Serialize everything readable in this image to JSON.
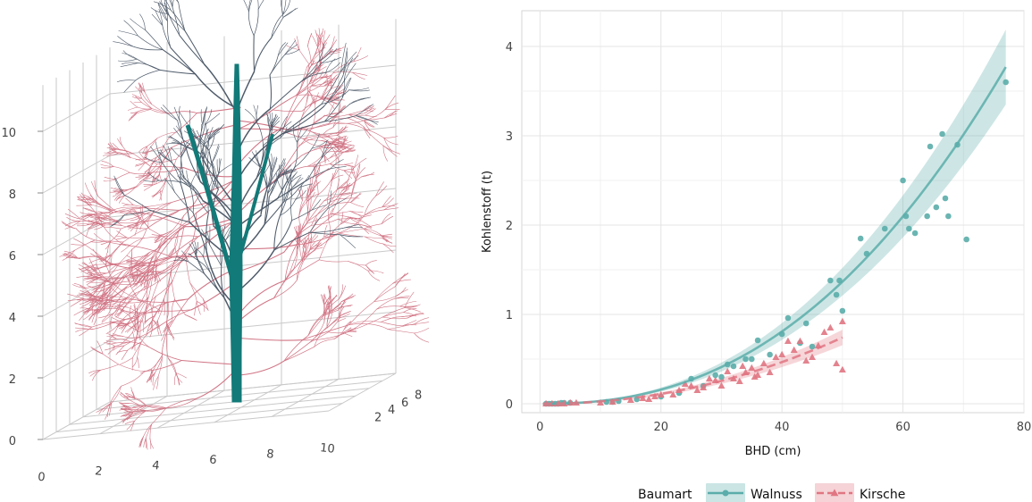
{
  "tree_plot": {
    "x_ticks": [
      "0",
      "2",
      "4",
      "6",
      "8",
      "10"
    ],
    "y_ticks": [
      "2",
      "4",
      "6",
      "8",
      "10"
    ],
    "z_ticks": [
      "0",
      "2",
      "4",
      "6",
      "8",
      "10"
    ],
    "colors": {
      "trunk": "#127a78",
      "branches_main": "#4f5b6a",
      "twigs": "#d17585"
    }
  },
  "chart_data": {
    "type": "scatter",
    "xlabel": "BHD (cm)",
    "ylabel": "Kohlenstoff (t)",
    "xlim": [
      -3,
      80
    ],
    "ylim": [
      -0.1,
      4.4
    ],
    "x_ticks": [
      0,
      20,
      40,
      60,
      80
    ],
    "y_ticks": [
      0,
      1,
      2,
      3,
      4
    ],
    "grid": true,
    "legend": {
      "title": "Baumart",
      "position": "bottom",
      "entries": [
        "Walnuss",
        "Kirsche"
      ]
    },
    "series": [
      {
        "name": "Walnuss",
        "color": "#5aadaa",
        "marker": "circle",
        "line": "solid",
        "fit": {
          "form": "power",
          "a": 0.000139,
          "b": 2.35,
          "x_range": [
            0.5,
            77
          ]
        },
        "points": [
          [
            1,
            0
          ],
          [
            1.5,
            0
          ],
          [
            2,
            0
          ],
          [
            2.5,
            0
          ],
          [
            3,
            0
          ],
          [
            3.5,
            0.01
          ],
          [
            4,
            0.01
          ],
          [
            5,
            0.01
          ],
          [
            11,
            0.02
          ],
          [
            12,
            0.02
          ],
          [
            13,
            0.03
          ],
          [
            16,
            0.05
          ],
          [
            20,
            0.08
          ],
          [
            23,
            0.12
          ],
          [
            25,
            0.28
          ],
          [
            27,
            0.2
          ],
          [
            29,
            0.32
          ],
          [
            30,
            0.3
          ],
          [
            31,
            0.44
          ],
          [
            32,
            0.42
          ],
          [
            34,
            0.5
          ],
          [
            35,
            0.5
          ],
          [
            36,
            0.71
          ],
          [
            38,
            0.55
          ],
          [
            40,
            0.78
          ],
          [
            41,
            0.96
          ],
          [
            43,
            0.68
          ],
          [
            44,
            0.9
          ],
          [
            45,
            0.64
          ],
          [
            48,
            1.38
          ],
          [
            49,
            1.22
          ],
          [
            49.5,
            1.38
          ],
          [
            50,
            1.04
          ],
          [
            53,
            1.85
          ],
          [
            54,
            1.68
          ],
          [
            57,
            1.96
          ],
          [
            60,
            2.5
          ],
          [
            60.5,
            2.1
          ],
          [
            61,
            1.96
          ],
          [
            62,
            1.91
          ],
          [
            64,
            2.1
          ],
          [
            64.5,
            2.88
          ],
          [
            65.5,
            2.2
          ],
          [
            66.5,
            3.02
          ],
          [
            67,
            2.3
          ],
          [
            67.5,
            2.1
          ],
          [
            69,
            2.9
          ],
          [
            70.5,
            1.84
          ],
          [
            77,
            3.6
          ]
        ]
      },
      {
        "name": "Kirsche",
        "color": "#e07682",
        "marker": "triangle",
        "line": "dashed",
        "fit": {
          "form": "power",
          "a": 0.000217,
          "b": 2.08,
          "x_range": [
            0.5,
            50
          ]
        },
        "points": [
          [
            1,
            0
          ],
          [
            2,
            0
          ],
          [
            3,
            0
          ],
          [
            4,
            0
          ],
          [
            5,
            0.01
          ],
          [
            6,
            0.01
          ],
          [
            10,
            0.01
          ],
          [
            12,
            0.02
          ],
          [
            15,
            0.04
          ],
          [
            17,
            0.06
          ],
          [
            18,
            0.05
          ],
          [
            19,
            0.08
          ],
          [
            20,
            0.1
          ],
          [
            22,
            0.1
          ],
          [
            23,
            0.15
          ],
          [
            24,
            0.22
          ],
          [
            25,
            0.2
          ],
          [
            26,
            0.15
          ],
          [
            27,
            0.18
          ],
          [
            28,
            0.28
          ],
          [
            29,
            0.26
          ],
          [
            30,
            0.2
          ],
          [
            31,
            0.36
          ],
          [
            32,
            0.28
          ],
          [
            33,
            0.25
          ],
          [
            33.5,
            0.42
          ],
          [
            34,
            0.35
          ],
          [
            35,
            0.4
          ],
          [
            35.5,
            0.3
          ],
          [
            36,
            0.32
          ],
          [
            37,
            0.45
          ],
          [
            38,
            0.35
          ],
          [
            39,
            0.52
          ],
          [
            40,
            0.55
          ],
          [
            41,
            0.7
          ],
          [
            42,
            0.6
          ],
          [
            43,
            0.7
          ],
          [
            44,
            0.48
          ],
          [
            45,
            0.52
          ],
          [
            46,
            0.65
          ],
          [
            47,
            0.8
          ],
          [
            48,
            0.85
          ],
          [
            49,
            0.45
          ],
          [
            50,
            0.92
          ],
          [
            50,
            0.38
          ]
        ]
      }
    ]
  }
}
